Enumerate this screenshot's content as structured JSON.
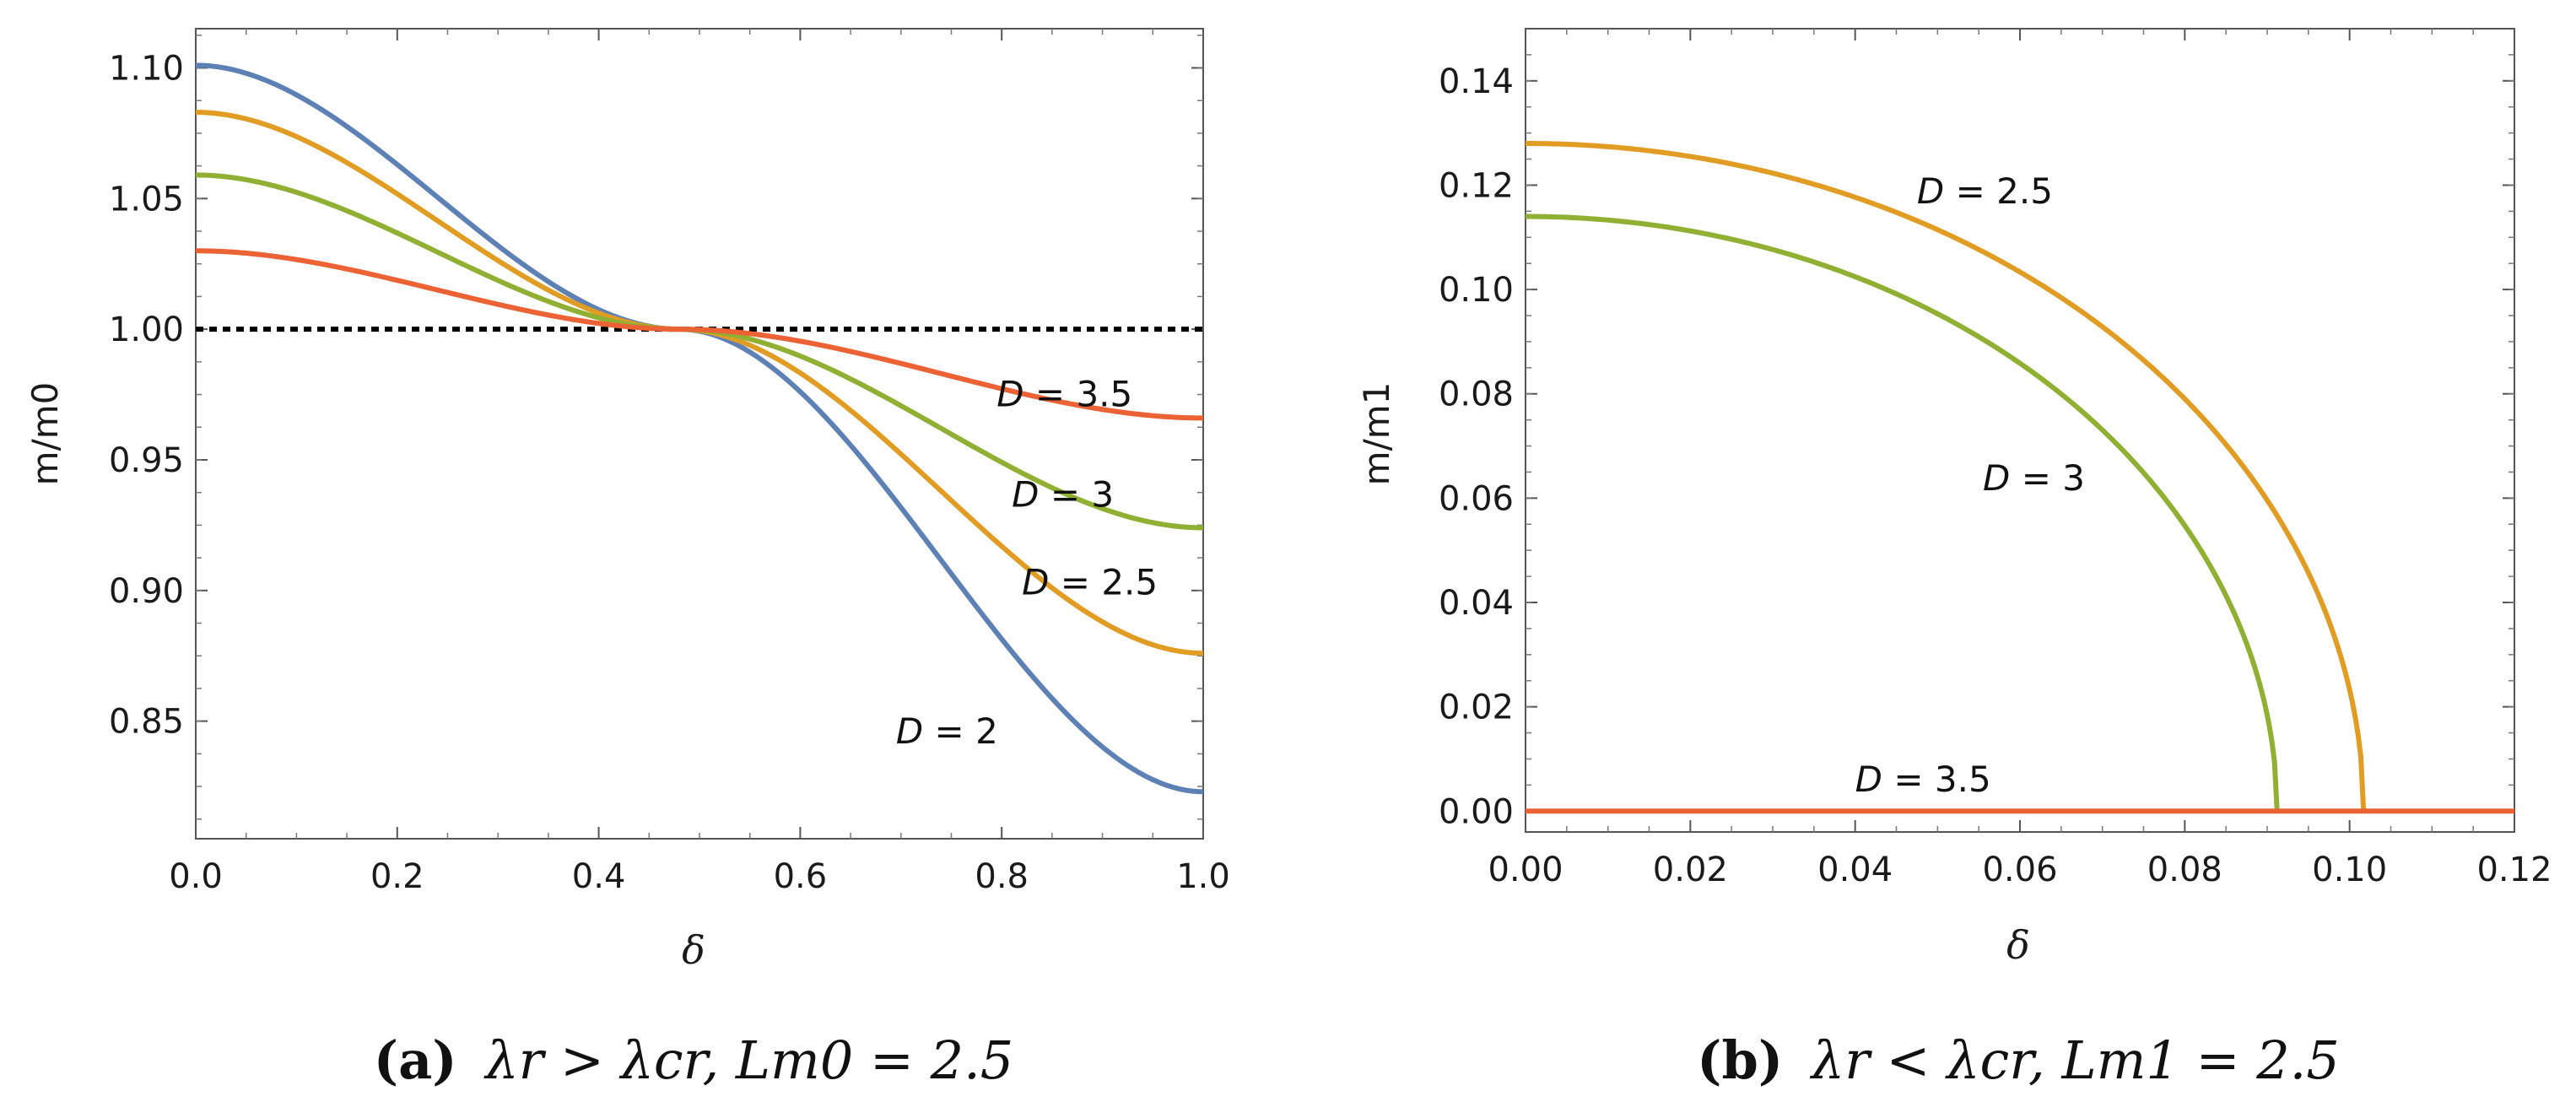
{
  "chart_data": [
    {
      "type": "line",
      "panel": "a",
      "caption_label": "(a)",
      "caption_text": "λr > λcr, Lm0 = 2.5",
      "xlabel": "δ",
      "ylabel": "m/m0",
      "xlim": [
        0,
        1
      ],
      "ylim": [
        0.805,
        1.115
      ],
      "xticks": [
        "0.0",
        "0.2",
        "0.4",
        "0.6",
        "0.8",
        "1.0"
      ],
      "xtick_values": [
        0,
        0.2,
        0.4,
        0.6,
        0.8,
        1.0
      ],
      "yticks": [
        "0.85",
        "0.90",
        "0.95",
        "1.00",
        "1.05",
        "1.10"
      ],
      "ytick_values": [
        0.85,
        0.9,
        0.95,
        1.0,
        1.05,
        1.1
      ],
      "reference_line": {
        "y": 1.0,
        "style": "dotted",
        "color": "#000000"
      },
      "series": [
        {
          "name": "D = 2",
          "color": "#5e81b5",
          "start": 1.101,
          "end": 0.823,
          "cross": 0.48
        },
        {
          "name": "D = 2.5",
          "color": "#e19c24",
          "start": 1.083,
          "end": 0.876,
          "cross": 0.48
        },
        {
          "name": "D = 3",
          "color": "#8fb032",
          "start": 1.059,
          "end": 0.924,
          "cross": 0.48
        },
        {
          "name": "D = 3.5",
          "color": "#eb6235",
          "start": 1.03,
          "end": 0.966,
          "cross": 0.48
        }
      ],
      "annotations": [
        {
          "text": "D = 3.5",
          "x": 0.795,
          "y": 0.9705
        },
        {
          "text": "D = 3",
          "x": 0.81,
          "y": 0.932
        },
        {
          "text": "D = 2.5",
          "x": 0.82,
          "y": 0.8985
        },
        {
          "text": "D = 2",
          "x": 0.695,
          "y": 0.8415
        }
      ]
    },
    {
      "type": "line",
      "panel": "b",
      "caption_label": "(b)",
      "caption_text": "λr < λcr, Lm1 = 2.5",
      "xlabel": "δ",
      "ylabel": "m/m1",
      "xlim": [
        0,
        0.12
      ],
      "ylim": [
        -0.004,
        0.15
      ],
      "xticks": [
        "0.00",
        "0.02",
        "0.04",
        "0.06",
        "0.08",
        "0.10",
        "0.12"
      ],
      "xtick_values": [
        0,
        0.02,
        0.04,
        0.06,
        0.08,
        0.1,
        0.12
      ],
      "yticks": [
        "0.00",
        "0.02",
        "0.04",
        "0.06",
        "0.08",
        "0.10",
        "0.12",
        "0.14"
      ],
      "ytick_values": [
        0,
        0.02,
        0.04,
        0.06,
        0.08,
        0.1,
        0.12,
        0.14
      ],
      "series": [
        {
          "name": "D = 2.5",
          "color": "#e19c24",
          "peak": 0.128,
          "end_x": 0.1017
        },
        {
          "name": "D = 3",
          "color": "#8fb032",
          "peak": 0.114,
          "end_x": 0.0912
        },
        {
          "name": "D = 3.5",
          "color": "#eb6235",
          "peak": 0.0,
          "end_x": 0.12
        }
      ],
      "annotations": [
        {
          "text": "D = 2.5",
          "x": 0.0475,
          "y": 0.1165
        },
        {
          "text": "D = 3",
          "x": 0.0555,
          "y": 0.0615
        },
        {
          "text": "D = 3.5",
          "x": 0.04,
          "y": 0.0038
        }
      ]
    }
  ]
}
